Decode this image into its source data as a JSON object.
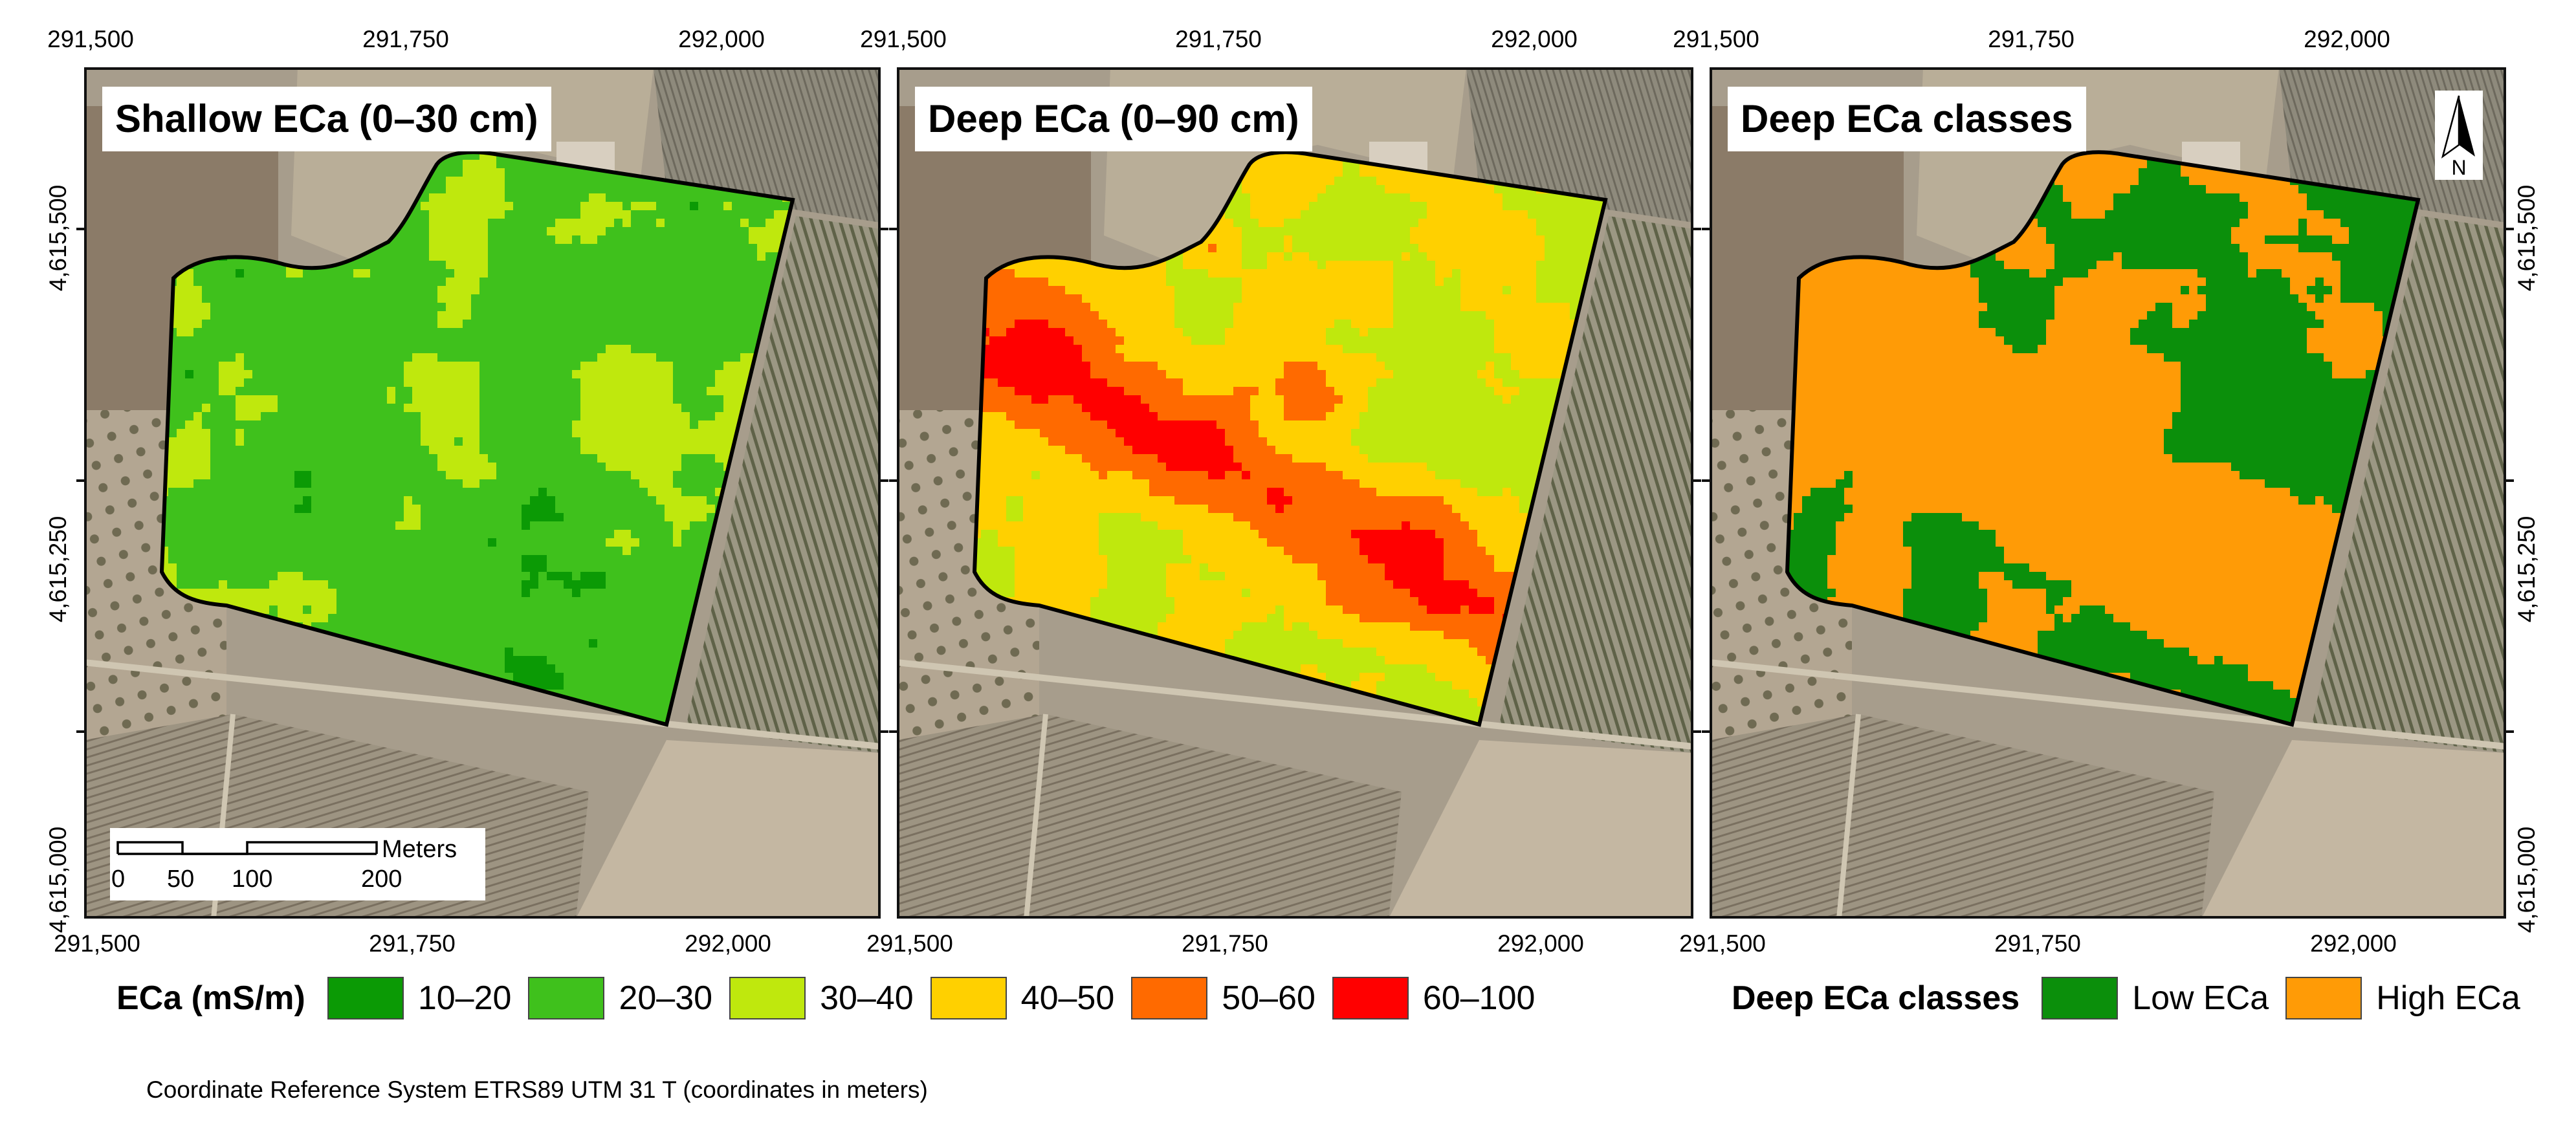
{
  "colors": {
    "ramp": [
      "#0b9a05",
      "#3fc11c",
      "#bfe80d",
      "#ffd000",
      "#ff6a00",
      "#ff0000"
    ],
    "classes": [
      "#0b8f0b",
      "#ff9b06"
    ],
    "boundary": "#000000"
  },
  "panels": [
    {
      "title": "Shallow ECa (0–30 cm)"
    },
    {
      "title": "Deep ECa (0–90 cm)"
    },
    {
      "title": "Deep ECa classes"
    }
  ],
  "axes": {
    "x_ticks": [
      "291,500",
      "291,750",
      "292,000"
    ],
    "y_ticks": [
      "4,615,500",
      "4,615,250",
      "4,615,000"
    ]
  },
  "scale_bar": {
    "unit": "Meters",
    "labels": [
      "0",
      "50",
      "100",
      "200"
    ]
  },
  "north_arrow": {
    "label": "N",
    "icon": "north-arrow-icon"
  },
  "legend_eca": {
    "title": "ECa (mS/m)",
    "items": [
      {
        "label": "10–20",
        "color": "#0b9a05"
      },
      {
        "label": "20–30",
        "color": "#3fc11c"
      },
      {
        "label": "30–40",
        "color": "#bfe80d"
      },
      {
        "label": "40–50",
        "color": "#ffd000"
      },
      {
        "label": "50–60",
        "color": "#ff6a00"
      },
      {
        "label": "60–100",
        "color": "#ff0000"
      }
    ]
  },
  "legend_classes": {
    "title": "Deep ECa classes",
    "items": [
      {
        "label": "Low ECa",
        "color": "#0b8f0b"
      },
      {
        "label": "High ECa",
        "color": "#ff9b06"
      }
    ]
  },
  "footnote": "Coordinate Reference System ETRS89 UTM 31 T (coordinates in meters)"
}
